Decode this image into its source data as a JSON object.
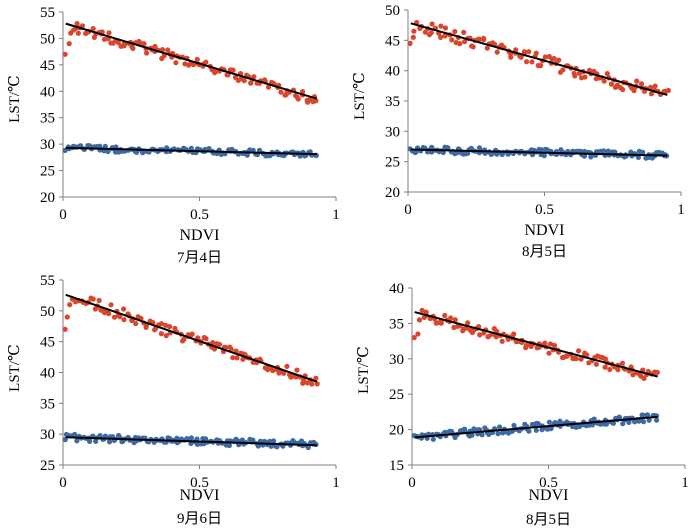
{
  "chart_data": [
    {
      "type": "scatter",
      "xlabel": "NDVI",
      "ylabel": "LST/℃",
      "caption": "7月4日",
      "xlim": [
        0,
        1
      ],
      "ylim": [
        20,
        55
      ],
      "xticks": [
        0,
        0.5,
        1
      ],
      "xtick_labels": [
        "0",
        "0.5",
        "1"
      ],
      "yticks": [
        20,
        25,
        30,
        35,
        40,
        45,
        50,
        55
      ],
      "ytick_labels": [
        "20",
        "25",
        "30",
        "35",
        "40",
        "45",
        "50",
        "55"
      ],
      "series": [
        {
          "color": "#d9472b",
          "x_range": [
            0.01,
            0.93
          ],
          "fit": [
            52.8,
            -15.5
          ],
          "start_tail": [
            47,
            49,
            51
          ],
          "jitter": 1.0,
          "points": 115
        },
        {
          "color": "#3b6aa5",
          "x_range": [
            0.01,
            0.93
          ],
          "fit": [
            29.3,
            -1.3
          ],
          "jitter": 0.55,
          "points": 130
        }
      ],
      "fits": [
        {
          "x": [
            0.01,
            0.93
          ],
          "y": [
            52.8,
            38.6
          ]
        },
        {
          "x": [
            0.01,
            0.93
          ],
          "y": [
            29.3,
            28.1
          ]
        }
      ]
    },
    {
      "type": "scatter",
      "xlabel": "NDVI",
      "ylabel": "LST/℃",
      "caption": "8月5日",
      "xlim": [
        0,
        1
      ],
      "ylim": [
        20,
        50
      ],
      "xticks": [
        0,
        0.5,
        1
      ],
      "xtick_labels": [
        "0",
        "0.5",
        "1"
      ],
      "yticks": [
        20,
        25,
        30,
        35,
        40,
        45,
        50
      ],
      "ytick_labels": [
        "20",
        "25",
        "30",
        "35",
        "40",
        "45",
        "50"
      ],
      "series": [
        {
          "color": "#d9472b",
          "x_range": [
            0.01,
            0.95
          ],
          "fit": [
            47.8,
            -12.5
          ],
          "start_tail": [
            44.5,
            45.5,
            46.5
          ],
          "jitter": 1.1,
          "points": 115
        },
        {
          "color": "#3b6aa5",
          "x_range": [
            0.01,
            0.95
          ],
          "fit": [
            27.0,
            -1.0
          ],
          "jitter": 0.55,
          "points": 130
        }
      ],
      "fits": [
        {
          "x": [
            0.01,
            0.95
          ],
          "y": [
            47.8,
            36.0
          ]
        },
        {
          "x": [
            0.01,
            0.95
          ],
          "y": [
            27.0,
            26.0
          ]
        }
      ]
    },
    {
      "type": "scatter",
      "xlabel": "NDVI",
      "ylabel": "LST/℃",
      "caption": "9月6日",
      "xlim": [
        0,
        1
      ],
      "ylim": [
        25,
        55
      ],
      "xticks": [
        0,
        0.5,
        1
      ],
      "xtick_labels": [
        "0",
        "0.5",
        "1"
      ],
      "yticks": [
        25,
        30,
        35,
        40,
        45,
        50,
        55
      ],
      "ytick_labels": [
        "25",
        "30",
        "35",
        "40",
        "45",
        "50",
        "55"
      ],
      "series": [
        {
          "color": "#d9472b",
          "x_range": [
            0.01,
            0.93
          ],
          "fit": [
            52.8,
            -15.5
          ],
          "start_tail": [
            47,
            49,
            51
          ],
          "jitter": 1.0,
          "points": 115
        },
        {
          "color": "#3b6aa5",
          "x_range": [
            0.01,
            0.93
          ],
          "fit": [
            29.5,
            -1.3
          ],
          "jitter": 0.55,
          "points": 130
        }
      ],
      "fits": [
        {
          "x": [
            0.01,
            0.93
          ],
          "y": [
            52.6,
            38.5
          ]
        },
        {
          "x": [
            0.01,
            0.93
          ],
          "y": [
            29.5,
            28.2
          ]
        }
      ]
    },
    {
      "type": "scatter",
      "xlabel": "NDVI",
      "ylabel": "LST/℃",
      "caption": "8月5日",
      "xlim": [
        0,
        1
      ],
      "ylim": [
        15,
        40
      ],
      "xticks": [
        0,
        0.5,
        1
      ],
      "xtick_labels": [
        "0",
        "0.5",
        "1"
      ],
      "yticks": [
        15,
        20,
        25,
        30,
        35,
        40
      ],
      "ytick_labels": [
        "15",
        "20",
        "25",
        "30",
        "35",
        "40"
      ],
      "series": [
        {
          "color": "#d9472b",
          "x_range": [
            0.01,
            0.9
          ],
          "fit": [
            36.6,
            -10.2
          ],
          "start_tail": [
            33,
            33.5,
            35.5
          ],
          "jitter": 0.8,
          "points": 115
        },
        {
          "color": "#3b6aa5",
          "x_range": [
            0.01,
            0.9
          ],
          "fit": [
            18.9,
            3.2
          ],
          "jitter": 0.55,
          "points": 130
        }
      ],
      "fits": [
        {
          "x": [
            0.01,
            0.9
          ],
          "y": [
            36.6,
            27.5
          ]
        },
        {
          "x": [
            0.01,
            0.9
          ],
          "y": [
            18.9,
            21.8
          ]
        }
      ]
    }
  ]
}
